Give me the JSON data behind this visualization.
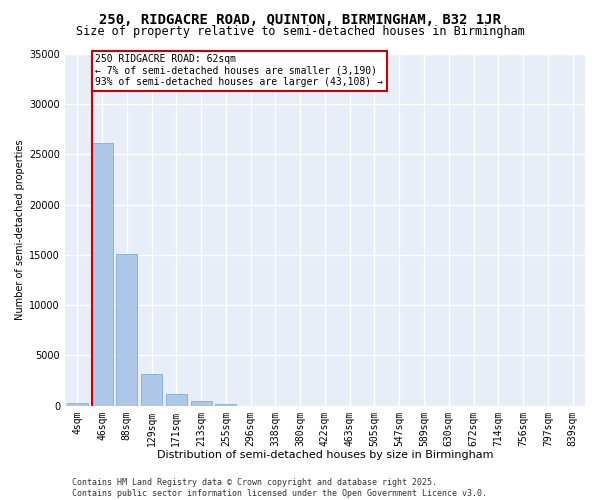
{
  "title": "250, RIDGACRE ROAD, QUINTON, BIRMINGHAM, B32 1JR",
  "subtitle": "Size of property relative to semi-detached houses in Birmingham",
  "xlabel": "Distribution of semi-detached houses by size in Birmingham",
  "ylabel": "Number of semi-detached properties",
  "categories": [
    "4sqm",
    "46sqm",
    "88sqm",
    "129sqm",
    "171sqm",
    "213sqm",
    "255sqm",
    "296sqm",
    "338sqm",
    "380sqm",
    "422sqm",
    "463sqm",
    "505sqm",
    "547sqm",
    "589sqm",
    "630sqm",
    "672sqm",
    "714sqm",
    "756sqm",
    "797sqm",
    "839sqm"
  ],
  "values": [
    300,
    26100,
    15100,
    3200,
    1200,
    450,
    200,
    0,
    0,
    0,
    0,
    0,
    0,
    0,
    0,
    0,
    0,
    0,
    0,
    0,
    0
  ],
  "bar_color": "#aec6e8",
  "bar_edgecolor": "#6fa8d6",
  "vline_color": "#cc0000",
  "annotation_text": "250 RIDGACRE ROAD: 62sqm\n← 7% of semi-detached houses are smaller (3,190)\n93% of semi-detached houses are larger (43,108) →",
  "annotation_box_color": "#ffffff",
  "annotation_box_edgecolor": "#cc0000",
  "ylim": [
    0,
    35000
  ],
  "yticks": [
    0,
    5000,
    10000,
    15000,
    20000,
    25000,
    30000,
    35000
  ],
  "background_color": "#e8eef8",
  "grid_color": "#ffffff",
  "footer": "Contains HM Land Registry data © Crown copyright and database right 2025.\nContains public sector information licensed under the Open Government Licence v3.0.",
  "title_fontsize": 10,
  "subtitle_fontsize": 8.5,
  "xlabel_fontsize": 8,
  "ylabel_fontsize": 7,
  "tick_fontsize": 7,
  "footer_fontsize": 6,
  "ann_fontsize": 7
}
